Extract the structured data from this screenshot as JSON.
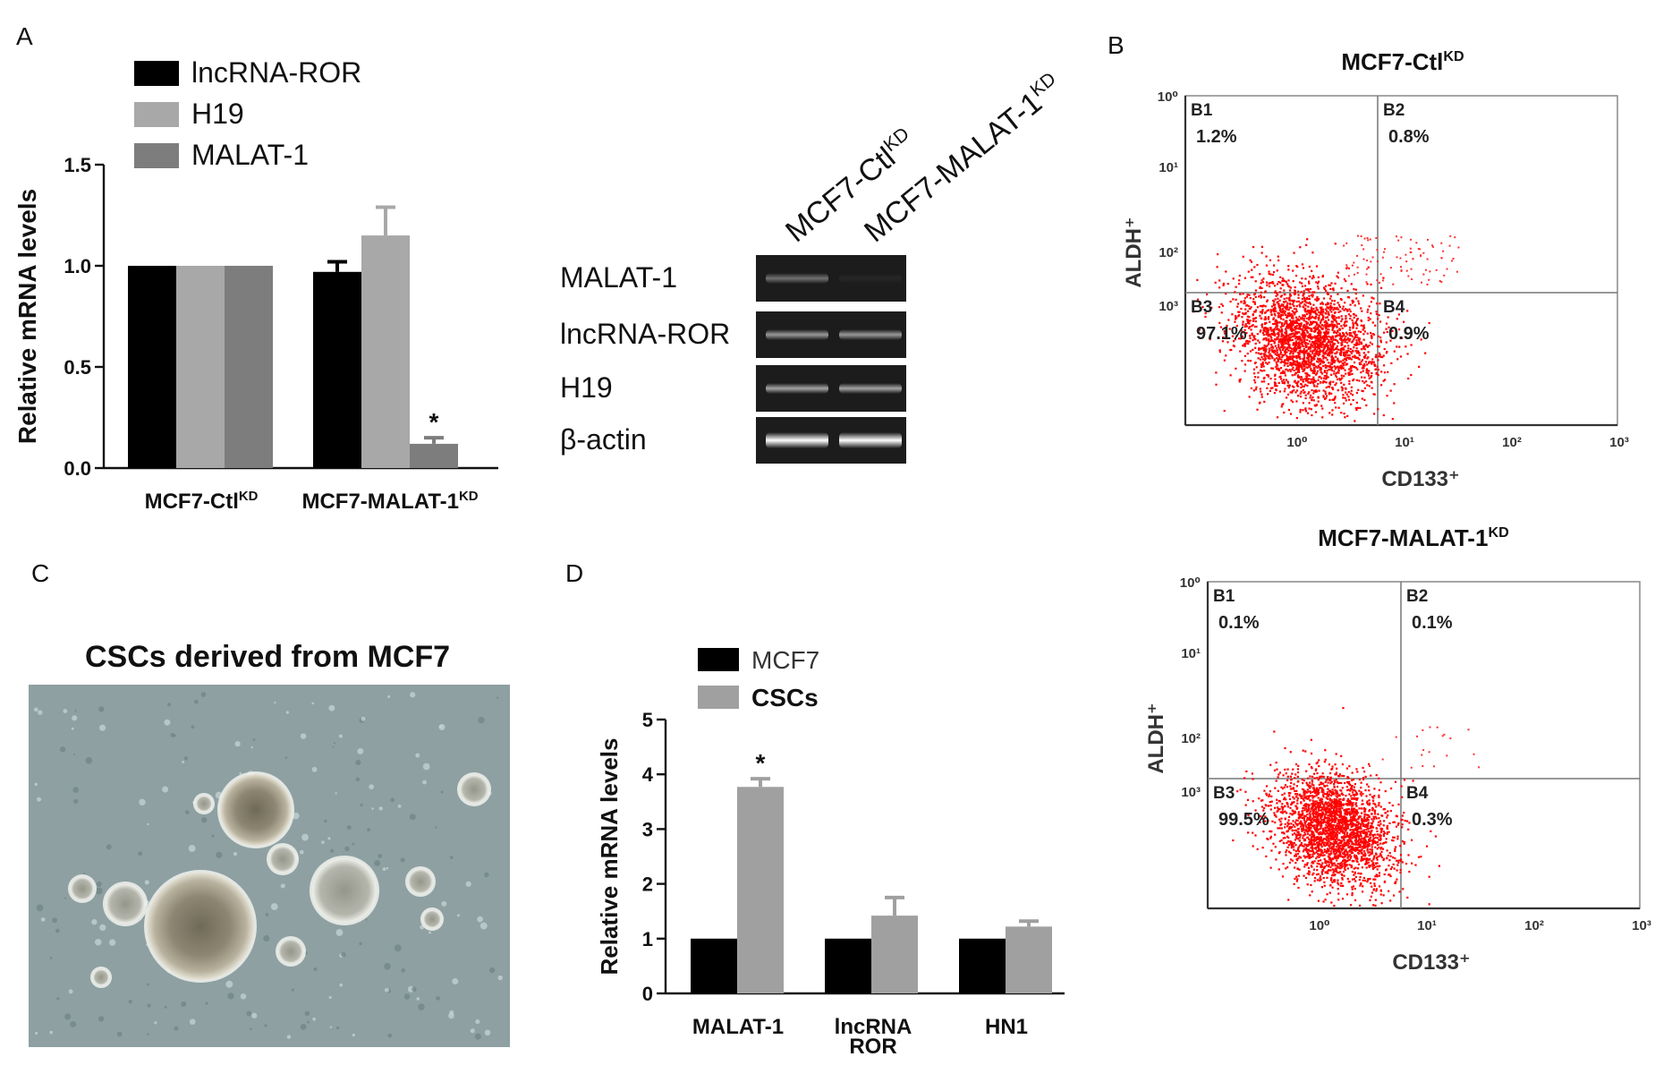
{
  "panels": {
    "A": "A",
    "B": "B",
    "C": "C",
    "D": "D"
  },
  "colors": {
    "black": "#000000",
    "light_gray": "#a8a8a8",
    "dark_gray": "#7d7d7d",
    "csc_gray": "#a0a0a0",
    "dot_red": "#ff0000",
    "micro_bg": "#8fa2a4"
  },
  "chart_data": [
    {
      "id": "A-bar",
      "type": "bar",
      "ylabel": "Relative mRNA levels",
      "ylim": [
        0,
        1.5
      ],
      "yticks": [
        "0.0",
        "0.5",
        "1.0",
        "1.5"
      ],
      "categories": [
        {
          "base": "MCF7-Ctl",
          "sup": "KD"
        },
        {
          "base": "MCF7-MALAT-1",
          "sup": "KD"
        }
      ],
      "series": [
        {
          "name": "lncRNA-ROR",
          "color": "#000000",
          "values": [
            1.0,
            0.97
          ],
          "err": [
            0,
            0.05
          ]
        },
        {
          "name": "H19",
          "color": "#a8a8a8",
          "values": [
            1.0,
            1.15
          ],
          "err": [
            0,
            0.14
          ]
        },
        {
          "name": "MALAT-1",
          "color": "#7d7d7d",
          "values": [
            1.0,
            0.12
          ],
          "err": [
            0,
            0.03
          ]
        }
      ],
      "annotations": [
        {
          "text": "*",
          "series": 2,
          "category": 1
        }
      ],
      "legend": "top-left"
    },
    {
      "id": "D-bar",
      "type": "bar",
      "ylabel": "Relative mRNA levels",
      "ylim": [
        0,
        5
      ],
      "yticks": [
        "0",
        "1",
        "2",
        "3",
        "4",
        "5"
      ],
      "categories": [
        "MALAT-1",
        "lncRNA ROR",
        "HN1"
      ],
      "category_lines": [
        [
          "MALAT-1"
        ],
        [
          "lncRNA",
          "ROR"
        ],
        [
          "HN1"
        ]
      ],
      "series": [
        {
          "name": "MCF7",
          "color": "#000000",
          "values": [
            1.0,
            1.0,
            1.0
          ],
          "err": [
            0,
            0,
            0
          ]
        },
        {
          "name": "CSCs",
          "color": "#a0a0a0",
          "values": [
            3.77,
            1.42,
            1.22
          ],
          "err": [
            0.15,
            0.33,
            0.1
          ]
        }
      ],
      "annotations": [
        {
          "text": "*",
          "series": 1,
          "category": 0
        }
      ],
      "legend": "top-left"
    }
  ],
  "gel": {
    "lanes": [
      {
        "base": "MCF7-Ctl",
        "sup": "KD"
      },
      {
        "base": "MCF7-MALAT-1",
        "sup": "KD"
      }
    ],
    "rows": [
      {
        "label": "MALAT-1",
        "intensity": [
          0.38,
          0.05
        ]
      },
      {
        "label": "lncRNA-ROR",
        "intensity": [
          0.55,
          0.55
        ]
      },
      {
        "label": "H19",
        "intensity": [
          0.6,
          0.6
        ]
      },
      {
        "label": "β-actin",
        "intensity": [
          1.0,
          1.0
        ]
      }
    ]
  },
  "flow": [
    {
      "title": {
        "base": "MCF7-Ctl",
        "sup": "KD"
      },
      "xlabel": "CD133⁺",
      "ylabel": "ALDH⁺",
      "ticks": [
        "10⁰",
        "10¹",
        "10²",
        "10³"
      ],
      "quadrants": [
        {
          "name": "B1",
          "pct": "1.2%"
        },
        {
          "name": "B2",
          "pct": "0.8%"
        },
        {
          "name": "B3",
          "pct": "97.1%"
        },
        {
          "name": "B4",
          "pct": "0.9%"
        }
      ]
    },
    {
      "title": {
        "base": "MCF7-MALAT-1",
        "sup": "KD"
      },
      "xlabel": "CD133⁺",
      "ylabel": "ALDH⁺",
      "ticks": [
        "10⁰",
        "10¹",
        "10²",
        "10³"
      ],
      "quadrants": [
        {
          "name": "B1",
          "pct": "0.1%"
        },
        {
          "name": "B2",
          "pct": "0.1%"
        },
        {
          "name": "B3",
          "pct": "99.5%"
        },
        {
          "name": "B4",
          "pct": "0.3%"
        }
      ]
    }
  ],
  "micrograph": {
    "title": "CSCs derived from MCF7"
  }
}
